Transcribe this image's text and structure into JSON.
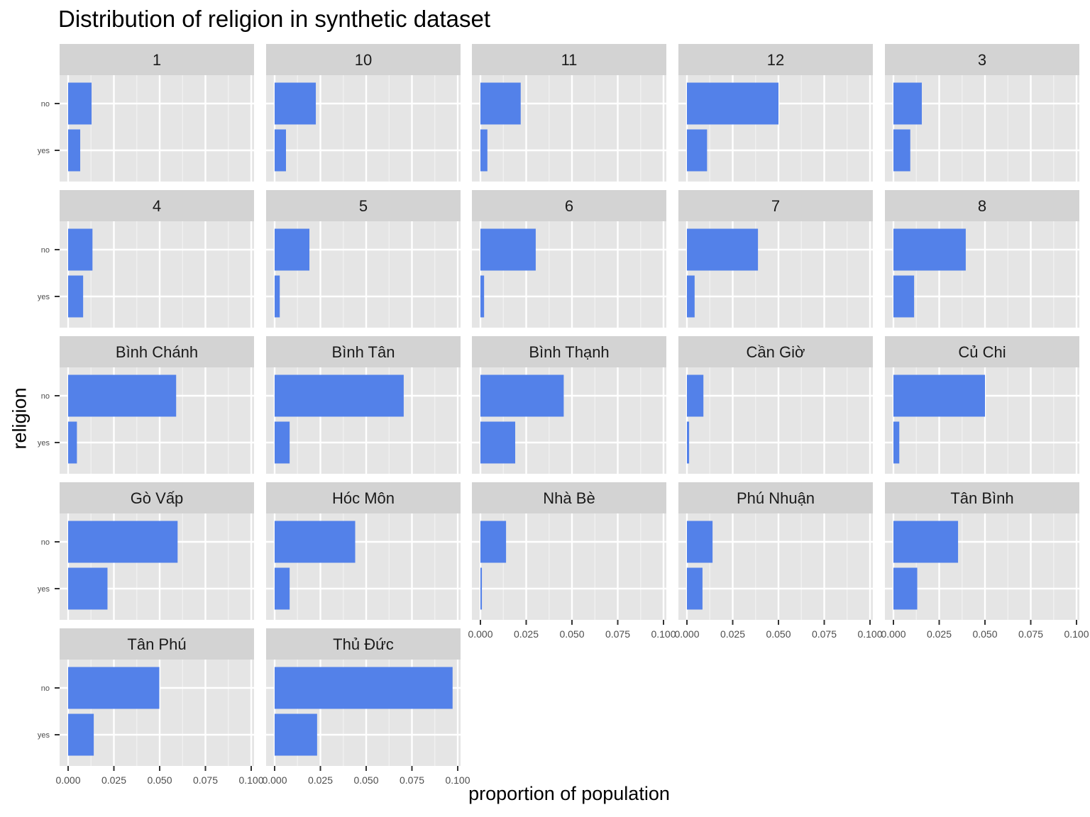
{
  "chart_data": {
    "type": "bar",
    "orientation": "horizontal",
    "title": "Distribution of religion in synthetic dataset",
    "xlabel": "proportion of population",
    "ylabel": "religion",
    "categories": [
      "no",
      "yes"
    ],
    "xlim": [
      0,
      0.1
    ],
    "x_ticks": [
      "0.000",
      "0.025",
      "0.050",
      "0.075",
      "0.100"
    ],
    "grid": true,
    "bar_color": "#5381e9",
    "panel_background": "#e5e5e5",
    "strip_background": "#d3d3d3",
    "facets": [
      {
        "name": "1",
        "values": [
          0.0128,
          0.0066
        ]
      },
      {
        "name": "10",
        "values": [
          0.0225,
          0.0062
        ]
      },
      {
        "name": "11",
        "values": [
          0.022,
          0.0038
        ]
      },
      {
        "name": "12",
        "values": [
          0.05,
          0.011
        ]
      },
      {
        "name": "3",
        "values": [
          0.0155,
          0.0092
        ]
      },
      {
        "name": "4",
        "values": [
          0.0133,
          0.0082
        ]
      },
      {
        "name": "5",
        "values": [
          0.019,
          0.0028
        ]
      },
      {
        "name": "6",
        "values": [
          0.0302,
          0.002
        ]
      },
      {
        "name": "7",
        "values": [
          0.0388,
          0.0042
        ]
      },
      {
        "name": "8",
        "values": [
          0.0395,
          0.0113
        ]
      },
      {
        "name": "Bình Chánh",
        "values": [
          0.059,
          0.0048
        ]
      },
      {
        "name": "Bình Tân",
        "values": [
          0.0705,
          0.0082
        ]
      },
      {
        "name": "Bình Thạnh",
        "values": [
          0.0455,
          0.019
        ]
      },
      {
        "name": "Cần Giờ",
        "values": [
          0.009,
          0.0012
        ]
      },
      {
        "name": "Củ Chi",
        "values": [
          0.05,
          0.0032
        ]
      },
      {
        "name": "Gò Vấp",
        "values": [
          0.0598,
          0.0215
        ]
      },
      {
        "name": "Hóc Môn",
        "values": [
          0.044,
          0.0082
        ]
      },
      {
        "name": "Nhà Bè",
        "values": [
          0.014,
          0.0008
        ]
      },
      {
        "name": "Phú Nhuận",
        "values": [
          0.014,
          0.0085
        ]
      },
      {
        "name": "Tân Bình",
        "values": [
          0.0353,
          0.013
        ]
      },
      {
        "name": "Tân Phú",
        "values": [
          0.0498,
          0.014
        ]
      },
      {
        "name": "Thủ Đức",
        "values": [
          0.0972,
          0.0232
        ]
      }
    ]
  }
}
